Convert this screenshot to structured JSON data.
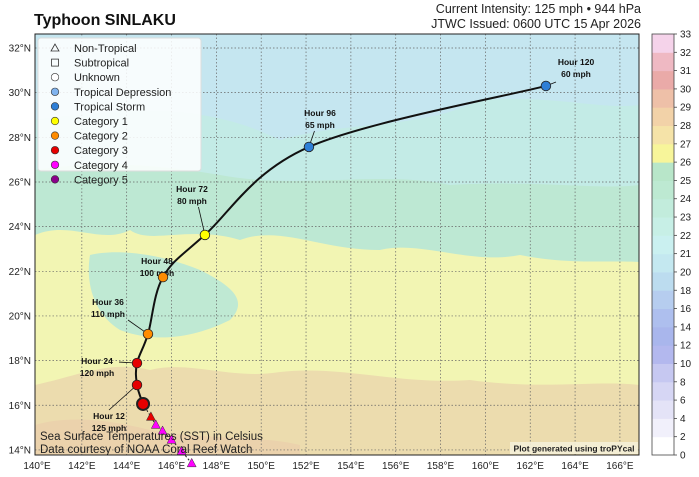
{
  "title": "Typhoon SINLAKU",
  "header": {
    "intensity": "Current Intensity: 125 mph • 944 hPa",
    "issued": "JTWC Issued: 0600 UTC 15 Apr 2026"
  },
  "map": {
    "lon_ticks": [
      "140°E",
      "142°E",
      "144°E",
      "146°E",
      "148°E",
      "150°E",
      "152°E",
      "154°E",
      "156°E",
      "158°E",
      "160°E",
      "162°E",
      "164°E",
      "166°E"
    ],
    "lat_ticks": [
      "14°N",
      "16°N",
      "18°N",
      "20°N",
      "22°N",
      "24°N",
      "26°N",
      "28°N",
      "30°N",
      "32°N"
    ],
    "lon_range": [
      140,
      166.8
    ],
    "lat_range": [
      13.8,
      32.6
    ],
    "grid": true
  },
  "legend": {
    "items": [
      {
        "label": "Non-Tropical",
        "symbol": "triangle-open",
        "color": "#ffffff"
      },
      {
        "label": "Subtropical",
        "symbol": "square-open",
        "color": "#ffffff"
      },
      {
        "label": "Unknown",
        "symbol": "circle-open",
        "color": "#ffffff"
      },
      {
        "label": "Tropical Depression",
        "symbol": "circle",
        "color": "#80b3ee"
      },
      {
        "label": "Tropical Storm",
        "symbol": "circle",
        "color": "#2f7fd6"
      },
      {
        "label": "Category 1",
        "symbol": "circle",
        "color": "#ffff00"
      },
      {
        "label": "Category 2",
        "symbol": "circle",
        "color": "#ff8c00"
      },
      {
        "label": "Category 3",
        "symbol": "circle",
        "color": "#e60000"
      },
      {
        "label": "Category 4",
        "symbol": "circle",
        "color": "#ff00ff"
      },
      {
        "label": "Category 5",
        "symbol": "circle",
        "color": "#8b008b"
      }
    ]
  },
  "forecast_track": [
    {
      "hour": "Current",
      "lon": 144.73,
      "lat": 16.06,
      "color": "#e60000",
      "current": true
    },
    {
      "hour": "Hour 12",
      "wind": "125 mph",
      "lon": 144.46,
      "lat": 16.91,
      "color": "#e60000"
    },
    {
      "hour": "Hour 24",
      "wind": "120 mph",
      "lon": 144.46,
      "lat": 17.89,
      "color": "#e60000"
    },
    {
      "hour": "Hour 36",
      "wind": "110 mph",
      "lon": 144.95,
      "lat": 19.19,
      "color": "#ff8c00"
    },
    {
      "hour": "Hour 48",
      "wind": "100 mph",
      "lon": 145.62,
      "lat": 21.74,
      "color": "#ff8c00"
    },
    {
      "hour": "Hour 72",
      "wind": "80 mph",
      "lon": 147.49,
      "lat": 23.63,
      "color": "#ffff00"
    },
    {
      "hour": "Hour 96",
      "wind": "65 mph",
      "lon": 152.13,
      "lat": 27.57,
      "color": "#2f7fd6"
    },
    {
      "hour": "Hour 120",
      "wind": "60 mph",
      "lon": 162.7,
      "lat": 30.3,
      "color": "#2f7fd6"
    }
  ],
  "past_track": [
    {
      "lon": 146.9,
      "lat": 13.4,
      "color": "#ff00ff"
    },
    {
      "lon": 146.45,
      "lat": 13.95,
      "color": "#ff00ff"
    },
    {
      "lon": 146.0,
      "lat": 14.45,
      "color": "#ff00ff"
    },
    {
      "lon": 145.6,
      "lat": 14.85,
      "color": "#ff00ff"
    },
    {
      "lon": 145.3,
      "lat": 15.12,
      "color": "#ff00ff"
    },
    {
      "lon": 145.08,
      "lat": 15.48,
      "color": "#e60000"
    }
  ],
  "colorbar": {
    "unit": "Celsius",
    "levels": [
      "0",
      "2",
      "4",
      "6",
      "8",
      "10",
      "12",
      "14",
      "16",
      "18",
      "20",
      "21",
      "22",
      "23",
      "24",
      "25",
      "26",
      "27",
      "28",
      "29",
      "30",
      "31",
      "32",
      "33"
    ],
    "colors": [
      "#ffffff",
      "#f1f0fb",
      "#e4e3f7",
      "#d6d6f4",
      "#c6c8f1",
      "#b3b8ee",
      "#a9b6ec",
      "#aebfee",
      "#b6cdef",
      "#bcdcef",
      "#c4e8f0",
      "#caf0f0",
      "#c7efe6",
      "#c2ecdc",
      "#bde9d2",
      "#b8e6c9",
      "#f7f59a",
      "#f5e3a8",
      "#f2d2a8",
      "#eec0a8",
      "#eaaaa8",
      "#efb9c3",
      "#f5d3ea"
    ]
  },
  "credits": {
    "sst": "Sea Surface Temperatures (SST) in Celsius",
    "source": "Data courtesy of NOAA Coral Reef Watch",
    "generator": "Plot generated using troPYcal"
  }
}
